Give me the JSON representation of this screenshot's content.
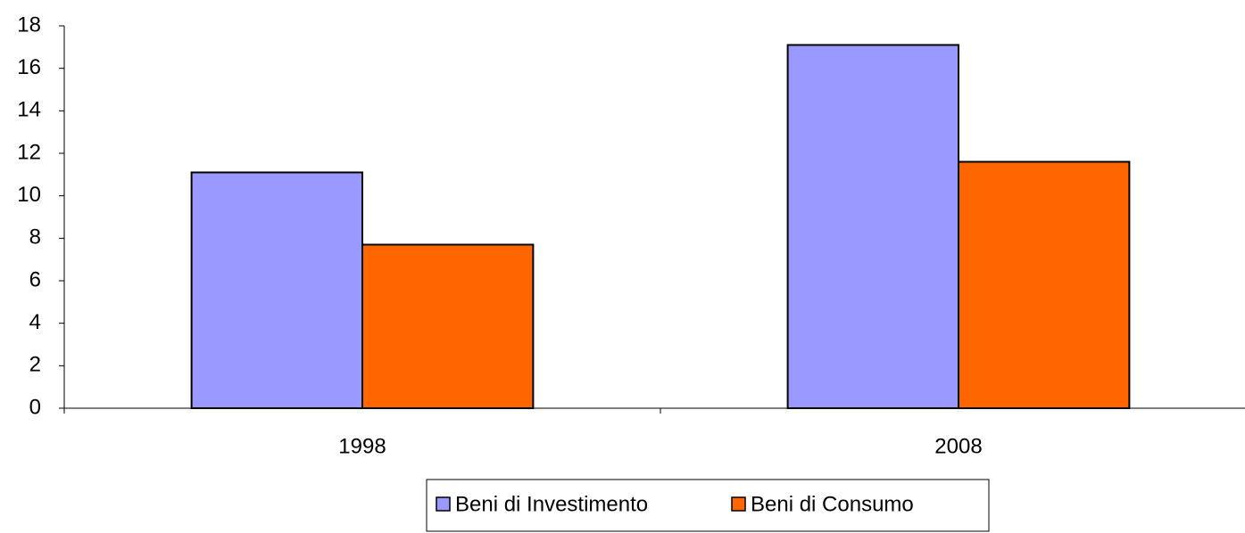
{
  "chart_data": {
    "type": "bar",
    "categories": [
      "1998",
      "2008"
    ],
    "series": [
      {
        "name": "Beni di Investimento",
        "color": "#9999ff",
        "values": [
          11.1,
          17.1
        ]
      },
      {
        "name": "Beni di Consumo",
        "color": "#ff6600",
        "values": [
          7.7,
          11.6
        ]
      }
    ],
    "ylim": [
      0,
      18
    ],
    "yticks": [
      0,
      2,
      4,
      6,
      8,
      10,
      12,
      14,
      16,
      18
    ],
    "grid": false,
    "legend": "bottom"
  }
}
